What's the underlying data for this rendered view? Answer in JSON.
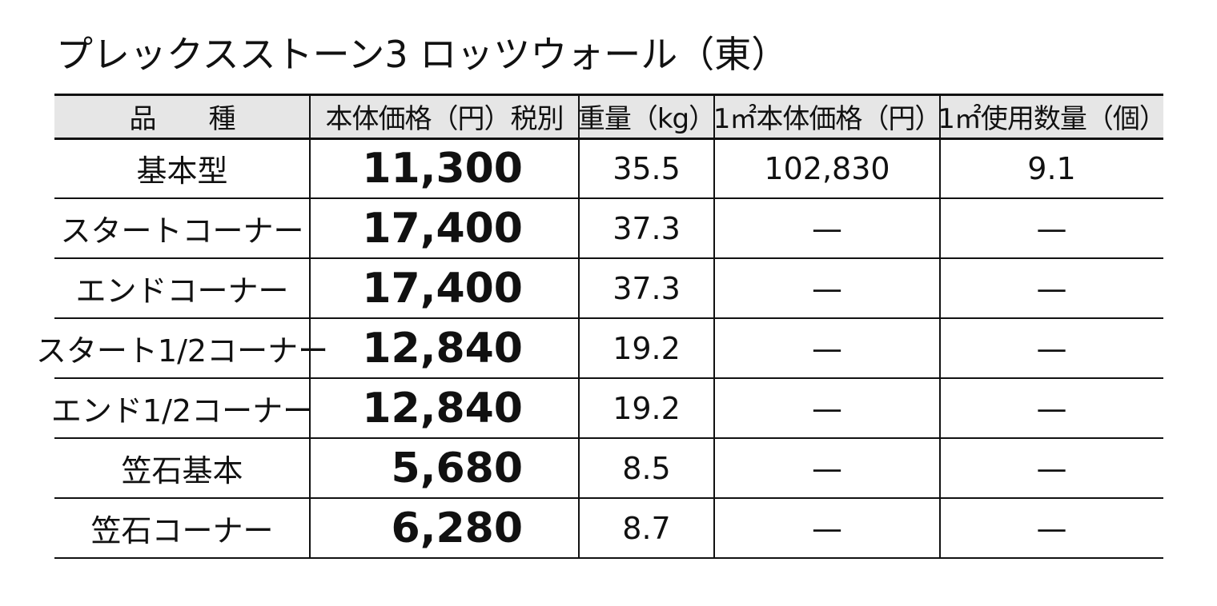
{
  "title": "プレックスストーン3 ロッツウォール（東）",
  "table": {
    "header": [
      "品　　種",
      "本体価格（円）税別",
      "重量（kg）",
      "1㎡本体価格（円）",
      "1㎡使用数量（個）"
    ],
    "rows": [
      [
        "基本型",
        "11,300",
        "35.5",
        "102,830",
        "9.1"
      ],
      [
        "スタートコーナー",
        "17,400",
        "37.3",
        "—",
        "—"
      ],
      [
        "エンドコーナー",
        "17,400",
        "37.3",
        "—",
        "—"
      ],
      [
        "スタート1/2コーナー",
        "12,840",
        "19.2",
        "—",
        "—"
      ],
      [
        "エンド1/2コーナー",
        "12,840",
        "19.2",
        "—",
        "—"
      ],
      [
        "笠石基本",
        "5,680",
        "8.5",
        "—",
        "—"
      ],
      [
        "笠石コーナー",
        "6,280",
        "8.7",
        "—",
        "—"
      ]
    ]
  }
}
